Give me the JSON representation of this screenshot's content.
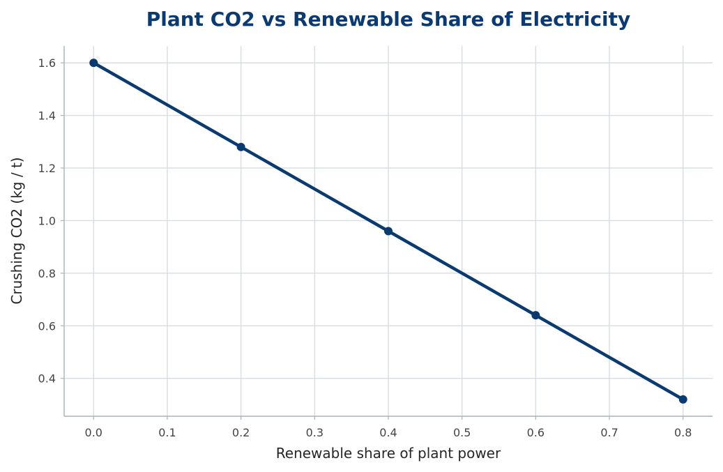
{
  "chart_data": {
    "type": "line",
    "title": "Plant CO2 vs Renewable Share of Electricity",
    "xlabel": "Renewable share of plant power",
    "ylabel": "Crushing CO2 (kg / t)",
    "x": [
      0.0,
      0.2,
      0.4,
      0.6,
      0.8
    ],
    "series": [
      {
        "values": [
          1.6,
          1.28,
          0.96,
          0.64,
          0.32
        ]
      }
    ],
    "xlim": [
      -0.04,
      0.84
    ],
    "ylim": [
      0.256,
      1.664
    ],
    "xticks": [
      "0.0",
      "0.1",
      "0.2",
      "0.3",
      "0.4",
      "0.5",
      "0.6",
      "0.7",
      "0.8"
    ],
    "yticks": [
      "0.4",
      "0.6",
      "0.8",
      "1.0",
      "1.2",
      "1.4",
      "1.6"
    ],
    "grid": true,
    "colors": {
      "line": "#0b3a70",
      "title": "#0b3a70"
    }
  }
}
